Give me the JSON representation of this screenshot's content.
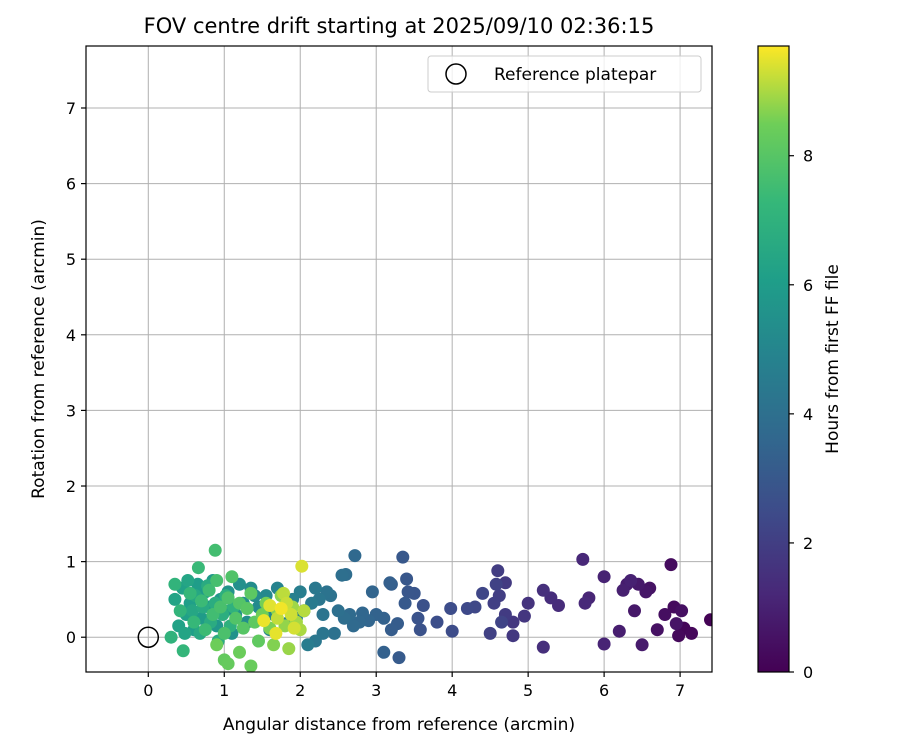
{
  "chart_data": {
    "type": "scatter",
    "title": "FOV centre drift starting at 2025/09/10 02:36:15",
    "xlabel": "Angular distance from reference (arcmin)",
    "ylabel": "Rotation from reference (arcmin)",
    "xlim": [
      -0.82,
      7.42
    ],
    "ylim": [
      -0.46,
      7.82
    ],
    "xticks": [
      0,
      1,
      2,
      3,
      4,
      5,
      6,
      7
    ],
    "yticks": [
      0,
      1,
      2,
      3,
      4,
      5,
      6,
      7
    ],
    "grid": true,
    "legend": {
      "position": "top-right",
      "entries": [
        {
          "label": "Reference platepar",
          "marker": "open-circle"
        }
      ]
    },
    "reference_point": {
      "x": 0,
      "y": 0
    },
    "colorbar": {
      "label": "Hours from first FF file",
      "min": 0,
      "max": 9.7,
      "ticks": [
        0,
        2,
        4,
        6,
        8
      ],
      "colormap": "viridis"
    },
    "points_columns": [
      "x",
      "y",
      "hours"
    ],
    "points": [
      [
        7.4,
        0.23,
        0.05
      ],
      [
        7.05,
        0.12,
        0.15
      ],
      [
        6.98,
        0.02,
        0.25
      ],
      [
        6.92,
        0.4,
        0.3
      ],
      [
        6.88,
        0.96,
        0.35
      ],
      [
        6.8,
        0.3,
        0.4
      ],
      [
        7.15,
        0.05,
        0.2
      ],
      [
        6.7,
        0.1,
        0.5
      ],
      [
        7.02,
        0.35,
        0.45
      ],
      [
        6.95,
        0.18,
        0.6
      ],
      [
        6.6,
        0.65,
        0.55
      ],
      [
        6.55,
        0.6,
        0.65
      ],
      [
        6.45,
        0.7,
        0.75
      ],
      [
        6.4,
        0.35,
        0.7
      ],
      [
        6.5,
        -0.1,
        0.8
      ],
      [
        6.3,
        0.7,
        0.85
      ],
      [
        6.2,
        0.08,
        0.9
      ],
      [
        6.25,
        0.62,
        0.95
      ],
      [
        6.35,
        0.75,
        1.0
      ],
      [
        6.0,
        0.8,
        1.05
      ],
      [
        6.0,
        -0.09,
        1.1
      ],
      [
        5.8,
        0.52,
        1.15
      ],
      [
        5.72,
        1.03,
        1.2
      ],
      [
        5.75,
        0.45,
        1.25
      ],
      [
        5.4,
        0.42,
        1.35
      ],
      [
        5.3,
        0.52,
        1.4
      ],
      [
        5.2,
        -0.13,
        1.45
      ],
      [
        5.2,
        0.62,
        1.5
      ],
      [
        5.0,
        0.45,
        1.6
      ],
      [
        4.95,
        0.28,
        1.7
      ],
      [
        4.8,
        0.2,
        1.75
      ],
      [
        4.8,
        0.02,
        1.8
      ],
      [
        4.7,
        0.72,
        1.85
      ],
      [
        4.7,
        0.3,
        1.9
      ],
      [
        4.6,
        0.88,
        1.95
      ],
      [
        4.62,
        0.55,
        2.0
      ],
      [
        4.55,
        0.45,
        2.05
      ],
      [
        4.5,
        0.05,
        2.1
      ],
      [
        4.58,
        0.7,
        2.15
      ],
      [
        4.65,
        0.2,
        2.2
      ],
      [
        4.4,
        0.58,
        2.3
      ],
      [
        4.3,
        0.4,
        2.35
      ],
      [
        4.2,
        0.38,
        2.4
      ],
      [
        4.0,
        0.08,
        2.5
      ],
      [
        3.98,
        0.38,
        2.55
      ],
      [
        3.8,
        0.2,
        2.6
      ],
      [
        3.62,
        0.42,
        2.7
      ],
      [
        3.58,
        0.1,
        2.75
      ],
      [
        3.55,
        0.25,
        2.8
      ],
      [
        3.5,
        0.58,
        2.85
      ],
      [
        3.42,
        0.6,
        2.9
      ],
      [
        3.4,
        0.77,
        2.95
      ],
      [
        3.35,
        1.06,
        3.0
      ],
      [
        3.38,
        0.45,
        3.05
      ],
      [
        3.3,
        -0.27,
        3.1
      ],
      [
        3.28,
        0.18,
        3.15
      ],
      [
        3.2,
        0.1,
        3.2
      ],
      [
        3.2,
        0.7,
        3.25
      ],
      [
        3.18,
        0.72,
        3.3
      ],
      [
        3.1,
        -0.2,
        3.35
      ],
      [
        3.1,
        0.25,
        3.4
      ],
      [
        3.0,
        0.3,
        3.45
      ],
      [
        2.95,
        0.6,
        3.5
      ],
      [
        2.9,
        0.22,
        3.55
      ],
      [
        2.82,
        0.32,
        3.6
      ],
      [
        2.78,
        0.2,
        3.65
      ],
      [
        2.72,
        1.08,
        3.7
      ],
      [
        2.7,
        0.15,
        3.75
      ],
      [
        2.65,
        0.3,
        3.8
      ],
      [
        2.6,
        0.83,
        3.85
      ],
      [
        2.58,
        0.25,
        3.9
      ],
      [
        2.55,
        0.82,
        3.95
      ],
      [
        2.5,
        0.35,
        4.0
      ],
      [
        2.45,
        0.05,
        4.05
      ],
      [
        2.4,
        0.55,
        4.1
      ],
      [
        2.35,
        0.6,
        4.15
      ],
      [
        2.3,
        0.3,
        4.2
      ],
      [
        2.3,
        0.05,
        4.25
      ],
      [
        2.25,
        0.5,
        4.3
      ],
      [
        2.2,
        -0.05,
        4.35
      ],
      [
        2.2,
        0.65,
        4.4
      ],
      [
        2.15,
        0.45,
        4.5
      ],
      [
        2.1,
        -0.1,
        4.55
      ],
      [
        2.05,
        0.35,
        4.6
      ],
      [
        2.0,
        0.6,
        4.65
      ],
      [
        1.95,
        0.25,
        4.7
      ],
      [
        1.9,
        0.5,
        4.75
      ],
      [
        1.85,
        0.2,
        4.8
      ],
      [
        1.8,
        0.4,
        4.85
      ],
      [
        1.7,
        0.65,
        4.9
      ],
      [
        1.65,
        0.3,
        5.0
      ],
      [
        1.6,
        0.1,
        5.05
      ],
      [
        1.55,
        0.55,
        5.1
      ],
      [
        1.5,
        0.25,
        5.15
      ],
      [
        1.45,
        0.4,
        5.2
      ],
      [
        1.4,
        0.55,
        5.25
      ],
      [
        1.35,
        0.65,
        5.3
      ],
      [
        1.3,
        0.2,
        5.35
      ],
      [
        1.25,
        0.45,
        5.4
      ],
      [
        1.2,
        0.7,
        5.45
      ],
      [
        1.15,
        0.3,
        5.5
      ],
      [
        1.1,
        0.05,
        5.55
      ],
      [
        1.05,
        0.6,
        5.6
      ],
      [
        1.0,
        0.35,
        5.65
      ],
      [
        0.95,
        0.5,
        5.7
      ],
      [
        0.9,
        0.15,
        5.75
      ],
      [
        0.85,
        0.75,
        5.8
      ],
      [
        0.8,
        0.4,
        5.85
      ],
      [
        0.75,
        0.6,
        5.9
      ],
      [
        0.7,
        0.25,
        5.95
      ],
      [
        0.65,
        0.7,
        6.0
      ],
      [
        0.6,
        0.1,
        6.05
      ],
      [
        0.55,
        0.45,
        6.1
      ],
      [
        0.5,
        0.3,
        6.15
      ],
      [
        0.45,
        0.65,
        6.2
      ],
      [
        0.4,
        0.15,
        6.25
      ],
      [
        0.35,
        0.5,
        6.3
      ],
      [
        0.48,
        0.05,
        6.35
      ],
      [
        0.52,
        0.75,
        6.4
      ],
      [
        0.58,
        0.35,
        6.45
      ],
      [
        0.62,
        0.55,
        6.5
      ],
      [
        0.68,
        0.05,
        6.55
      ],
      [
        0.72,
        0.4,
        6.6
      ],
      [
        0.78,
        0.68,
        6.65
      ],
      [
        0.82,
        0.2,
        6.7
      ],
      [
        0.88,
        0.45,
        6.75
      ],
      [
        0.92,
        -0.05,
        6.8
      ],
      [
        0.98,
        0.3,
        6.85
      ],
      [
        1.02,
        0.55,
        6.9
      ],
      [
        1.08,
        0.15,
        6.95
      ],
      [
        1.12,
        0.4,
        7.0
      ],
      [
        0.3,
        0.0,
        7.05
      ],
      [
        0.35,
        0.7,
        7.1
      ],
      [
        0.42,
        0.35,
        7.15
      ],
      [
        0.46,
        -0.18,
        7.2
      ],
      [
        0.55,
        0.58,
        7.25
      ],
      [
        0.6,
        0.2,
        7.3
      ],
      [
        0.66,
        0.92,
        7.35
      ],
      [
        0.7,
        0.48,
        7.4
      ],
      [
        0.75,
        0.1,
        7.45
      ],
      [
        0.8,
        0.62,
        7.5
      ],
      [
        0.85,
        0.3,
        7.55
      ],
      [
        0.88,
        1.15,
        7.6
      ],
      [
        0.9,
        0.75,
        7.65
      ],
      [
        0.95,
        0.4,
        7.7
      ],
      [
        1.0,
        0.05,
        7.75
      ],
      [
        1.05,
        0.52,
        7.8
      ],
      [
        1.1,
        0.8,
        7.85
      ],
      [
        1.15,
        0.25,
        7.9
      ],
      [
        1.2,
        0.45,
        7.95
      ],
      [
        1.25,
        0.12,
        8.0
      ],
      [
        1.3,
        0.38,
        8.05
      ],
      [
        1.35,
        0.58,
        8.1
      ],
      [
        1.4,
        0.2,
        8.15
      ],
      [
        1.45,
        -0.05,
        8.2
      ],
      [
        1.0,
        -0.3,
        8.25
      ],
      [
        1.05,
        -0.35,
        8.3
      ],
      [
        1.35,
        -0.38,
        8.35
      ],
      [
        1.2,
        -0.2,
        8.4
      ],
      [
        0.9,
        -0.1,
        8.45
      ],
      [
        1.5,
        0.3,
        8.5
      ],
      [
        1.55,
        0.45,
        8.55
      ],
      [
        1.6,
        0.12,
        8.6
      ],
      [
        1.65,
        -0.1,
        8.65
      ],
      [
        1.7,
        0.35,
        8.7
      ],
      [
        1.75,
        0.55,
        8.75
      ],
      [
        1.8,
        0.15,
        8.8
      ],
      [
        1.85,
        -0.15,
        8.85
      ],
      [
        1.9,
        0.4,
        8.9
      ],
      [
        1.95,
        0.2,
        8.95
      ],
      [
        2.0,
        0.1,
        9.0
      ],
      [
        2.05,
        0.35,
        9.1
      ],
      [
        1.78,
        0.58,
        9.15
      ],
      [
        1.7,
        0.25,
        9.2
      ],
      [
        1.82,
        0.45,
        9.25
      ],
      [
        1.88,
        0.3,
        9.3
      ],
      [
        1.92,
        0.12,
        9.35
      ],
      [
        2.02,
        0.94,
        9.4
      ],
      [
        1.6,
        0.42,
        9.45
      ],
      [
        1.68,
        0.05,
        9.5
      ],
      [
        1.52,
        0.22,
        9.55
      ],
      [
        1.75,
        0.38,
        9.6
      ]
    ]
  }
}
